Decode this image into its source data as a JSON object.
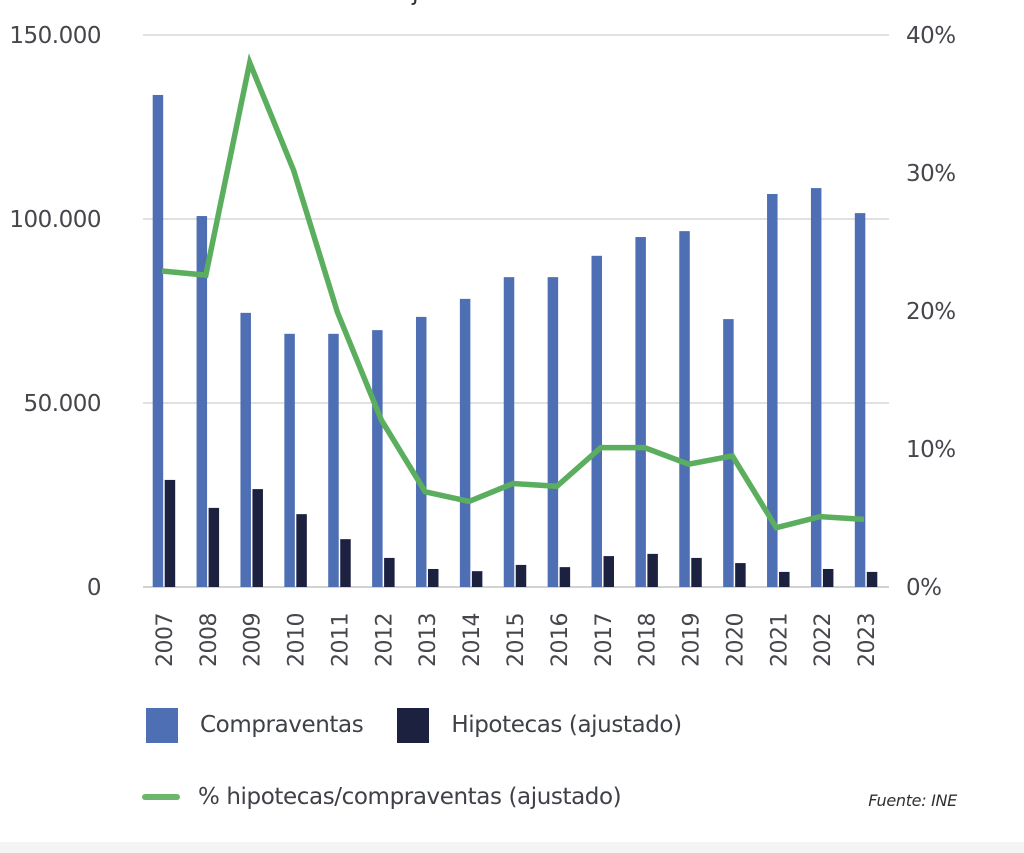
{
  "title_fragment": "j",
  "chart_data": {
    "type": "bar",
    "title": "",
    "xlabel": "",
    "ylabel": "",
    "y2label": "",
    "categories": [
      "2007",
      "2008",
      "2009",
      "2010",
      "2011",
      "2012",
      "2013",
      "2014",
      "2015",
      "2016",
      "2017",
      "2018",
      "2019",
      "2020",
      "2021",
      "2022",
      "2023"
    ],
    "series": [
      {
        "name": "Compraventas",
        "type": "bar",
        "axis": "left",
        "color": "#4e6fb3",
        "values": [
          133700,
          100800,
          74500,
          68800,
          68800,
          69800,
          73400,
          78300,
          84200,
          84200,
          90000,
          95100,
          96700,
          72800,
          106800,
          108400,
          101600
        ]
      },
      {
        "name": "Hipotecas (ajustado)",
        "type": "bar",
        "axis": "left",
        "color": "#1d2140",
        "values": [
          29100,
          21500,
          26600,
          19800,
          13000,
          7900,
          4900,
          4300,
          6000,
          5400,
          8400,
          9000,
          7900,
          6500,
          4100,
          4900,
          4100
        ]
      },
      {
        "name": "% hipotecas/compraventas (ajustado)",
        "type": "line",
        "axis": "right",
        "color": "#5aae5e",
        "values": [
          22.9,
          22.6,
          38.0,
          30.2,
          19.9,
          12.1,
          6.9,
          6.2,
          7.5,
          7.3,
          10.1,
          10.1,
          8.9,
          9.5,
          4.3,
          5.1,
          4.9
        ]
      }
    ],
    "ylim": [
      0,
      150000
    ],
    "y2lim": [
      0,
      40
    ],
    "yticks": [
      0,
      50000,
      100000,
      150000
    ],
    "ytick_labels": [
      "0",
      "50.000",
      "100.000",
      "150.000"
    ],
    "y2ticks": [
      0,
      10,
      20,
      30,
      40
    ],
    "y2tick_labels": [
      "0%",
      "10%",
      "20%",
      "30%",
      "40%"
    ],
    "grid": true,
    "legend_position": "bottom",
    "source": "Fuente: INE"
  },
  "legend": {
    "items": [
      {
        "label": "Compraventas",
        "kind": "box",
        "color": "#4e6fb3"
      },
      {
        "label": "Hipotecas (ajustado)",
        "kind": "box",
        "color": "#1d2140"
      },
      {
        "label": "% hipotecas/compraventas (ajustado)",
        "kind": "line",
        "color": "#6cb66c"
      }
    ]
  },
  "source": "Fuente: INE"
}
